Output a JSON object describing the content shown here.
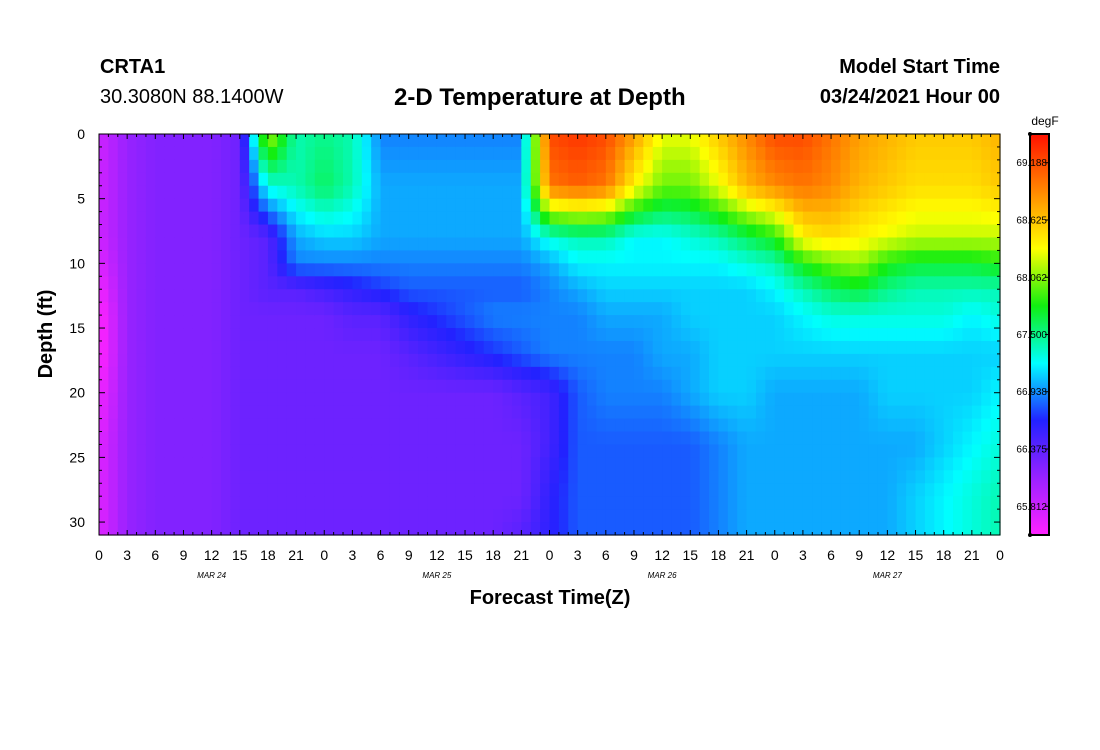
{
  "header": {
    "station_id": "CRTA1",
    "coordinates": "30.3080N 88.1400W",
    "title": "2-D Temperature at Depth",
    "model_label": "Model Start Time",
    "model_time": "03/24/2021 Hour 00"
  },
  "chart_data": {
    "type": "heatmap",
    "title": "2-D Temperature at Depth",
    "xlabel": "Forecast Time(Z)",
    "ylabel": "Depth (ft)",
    "x_range_hours": [
      0,
      96
    ],
    "x_tick_step_hours": 3,
    "x_tick_labels": [
      "0",
      "3",
      "6",
      "9",
      "12",
      "15",
      "18",
      "21",
      "0",
      "3",
      "6",
      "9",
      "12",
      "15",
      "18",
      "21",
      "0",
      "3",
      "6",
      "9",
      "12",
      "15",
      "18",
      "21",
      "0",
      "3",
      "6",
      "9",
      "12",
      "15",
      "18",
      "21",
      "0"
    ],
    "date_labels": [
      {
        "label": "MAR 24",
        "hour": 12
      },
      {
        "label": "MAR 25",
        "hour": 36
      },
      {
        "label": "MAR 26",
        "hour": 60
      },
      {
        "label": "MAR 27",
        "hour": 84
      }
    ],
    "y_range_ft": [
      0,
      31
    ],
    "y_ticks": [
      0,
      5,
      10,
      15,
      20,
      25,
      30
    ],
    "y_tick_labels": [
      "0",
      "5",
      "10",
      "15",
      "20",
      "25",
      "30"
    ],
    "colorbar": {
      "units": "degF",
      "min": 65.53,
      "max": 69.47,
      "tick_values": [
        69.188,
        68.625,
        68.062,
        67.5,
        66.938,
        66.375,
        65.812
      ],
      "tick_labels": [
        "69.188",
        "68.625",
        "68.062",
        "67.500",
        "66.938",
        "66.375",
        "65.812"
      ],
      "colors": [
        "#ff22ff",
        "#9922ff",
        "#2222ff",
        "#00ffff",
        "#11ee11",
        "#ffff00",
        "#ff8800",
        "#ff1100"
      ]
    },
    "grid_hours": [
      0,
      3,
      6,
      9,
      12,
      15,
      18,
      21,
      24,
      27,
      30,
      33,
      36,
      39,
      42,
      45,
      48,
      51,
      54,
      57,
      60,
      63,
      66,
      69,
      72,
      75,
      78,
      81,
      84,
      87,
      90,
      93,
      96
    ],
    "grid_depths_ft": [
      0,
      4,
      8,
      10,
      12,
      14,
      17,
      20,
      24,
      28,
      31
    ],
    "temperature_degF": [
      [
        65.8,
        66.1,
        66.2,
        66.2,
        66.2,
        66.3,
        68.2,
        67.4,
        67.5,
        67.4,
        66.9,
        66.9,
        66.9,
        66.9,
        66.9,
        66.9,
        69.2,
        69.3,
        69.2,
        68.8,
        68.3,
        68.3,
        68.6,
        68.9,
        69.2,
        69.2,
        69.0,
        68.8,
        68.7,
        68.6,
        68.6,
        68.6,
        68.7
      ],
      [
        65.8,
        66.1,
        66.2,
        66.2,
        66.2,
        66.3,
        67.3,
        67.4,
        67.6,
        67.4,
        67.0,
        67.0,
        67.0,
        67.0,
        67.0,
        67.0,
        69.0,
        69.1,
        69.0,
        68.4,
        68.0,
        68.0,
        68.3,
        68.7,
        68.9,
        69.0,
        68.9,
        68.7,
        68.6,
        68.5,
        68.5,
        68.5,
        68.6
      ],
      [
        65.8,
        66.1,
        66.2,
        66.2,
        66.2,
        66.3,
        66.4,
        67.0,
        67.1,
        67.1,
        67.0,
        67.0,
        67.0,
        67.0,
        67.0,
        67.0,
        67.3,
        67.4,
        67.4,
        67.2,
        67.2,
        67.3,
        67.4,
        67.6,
        67.8,
        68.4,
        68.5,
        68.4,
        68.3,
        68.2,
        68.2,
        68.2,
        68.2
      ],
      [
        65.7,
        66.1,
        66.2,
        66.2,
        66.2,
        66.3,
        66.4,
        66.9,
        66.9,
        66.9,
        66.9,
        66.9,
        66.9,
        66.9,
        66.9,
        66.9,
        67.0,
        67.2,
        67.2,
        67.2,
        67.2,
        67.2,
        67.2,
        67.3,
        67.4,
        67.8,
        68.0,
        68.1,
        67.8,
        67.7,
        67.7,
        67.7,
        67.8
      ],
      [
        65.6,
        66.1,
        66.2,
        66.2,
        66.2,
        66.3,
        66.4,
        66.4,
        66.5,
        66.6,
        66.7,
        66.8,
        66.8,
        66.8,
        66.8,
        66.8,
        66.9,
        67.0,
        67.1,
        67.1,
        67.1,
        67.1,
        67.1,
        67.1,
        67.2,
        67.4,
        67.6,
        67.7,
        67.5,
        67.4,
        67.4,
        67.4,
        67.4
      ],
      [
        65.5,
        66.1,
        66.2,
        66.2,
        66.2,
        66.3,
        66.3,
        66.3,
        66.3,
        66.4,
        66.4,
        66.6,
        66.7,
        66.8,
        66.9,
        66.9,
        66.9,
        66.9,
        67.0,
        67.0,
        67.0,
        67.1,
        67.1,
        67.1,
        67.1,
        67.2,
        67.3,
        67.3,
        67.3,
        67.3,
        67.3,
        67.2,
        67.3
      ],
      [
        65.5,
        66.1,
        66.2,
        66.2,
        66.2,
        66.3,
        66.3,
        66.3,
        66.3,
        66.3,
        66.3,
        66.4,
        66.5,
        66.6,
        66.7,
        66.8,
        66.9,
        66.9,
        66.9,
        66.9,
        67.0,
        67.0,
        67.1,
        67.1,
        67.1,
        67.1,
        67.1,
        67.1,
        67.1,
        67.1,
        67.1,
        67.1,
        67.1
      ],
      [
        65.6,
        66.1,
        66.2,
        66.2,
        66.2,
        66.3,
        66.3,
        66.3,
        66.3,
        66.3,
        66.3,
        66.3,
        66.3,
        66.3,
        66.3,
        66.4,
        66.5,
        66.8,
        66.9,
        66.9,
        66.9,
        67.0,
        67.1,
        67.1,
        67.0,
        67.0,
        67.0,
        67.0,
        67.1,
        67.1,
        67.1,
        67.1,
        67.2
      ],
      [
        65.7,
        66.1,
        66.2,
        66.2,
        66.2,
        66.3,
        66.3,
        66.3,
        66.3,
        66.3,
        66.3,
        66.3,
        66.3,
        66.3,
        66.3,
        66.3,
        66.5,
        66.8,
        66.8,
        66.8,
        66.8,
        66.8,
        66.9,
        67.0,
        67.0,
        67.0,
        67.0,
        67.0,
        67.0,
        67.0,
        67.1,
        67.2,
        67.3
      ],
      [
        65.7,
        66.1,
        66.2,
        66.2,
        66.2,
        66.3,
        66.3,
        66.3,
        66.3,
        66.3,
        66.3,
        66.3,
        66.3,
        66.3,
        66.3,
        66.3,
        66.6,
        66.8,
        66.8,
        66.8,
        66.8,
        66.8,
        66.9,
        67.0,
        67.0,
        67.0,
        67.0,
        67.0,
        67.0,
        67.1,
        67.2,
        67.3,
        67.4
      ],
      [
        65.7,
        66.1,
        66.2,
        66.2,
        66.2,
        66.3,
        66.3,
        66.3,
        66.3,
        66.3,
        66.3,
        66.3,
        66.3,
        66.3,
        66.3,
        66.4,
        66.6,
        66.8,
        66.8,
        66.8,
        66.8,
        66.8,
        66.9,
        67.0,
        67.0,
        67.0,
        67.0,
        67.0,
        67.0,
        67.1,
        67.2,
        67.3,
        67.4
      ]
    ]
  }
}
